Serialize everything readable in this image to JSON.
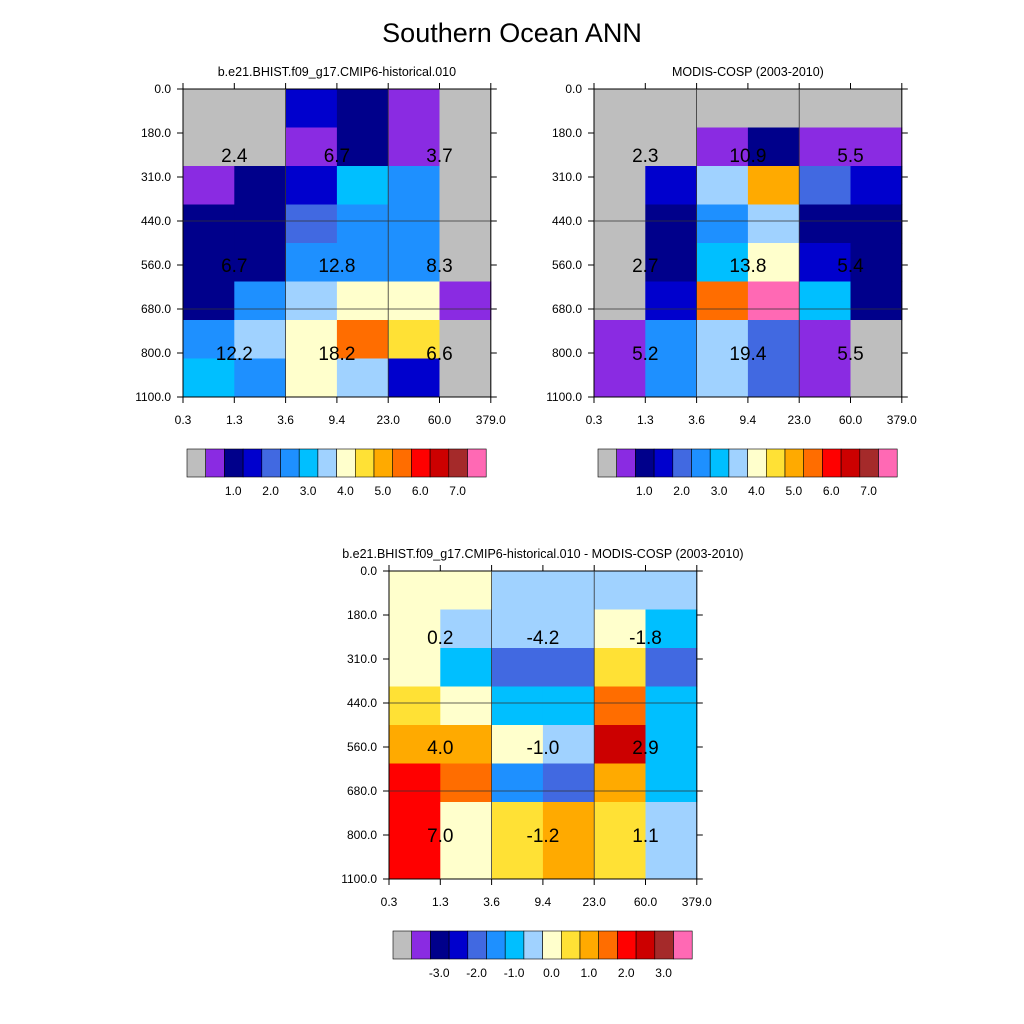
{
  "title": "Southern Ocean ANN",
  "colors": {
    "abs_palette": [
      "#bebebe",
      "#8a2be2",
      "#00008b",
      "#0000cd",
      "#4169e1",
      "#1e90ff",
      "#00bfff",
      "#a0d2ff",
      "#ffffcc",
      "#ffe135",
      "#ffaa00",
      "#ff6d00",
      "#ff0000",
      "#cc0000",
      "#a52a2a",
      "#ff69b4"
    ],
    "diff_palette": [
      "#bebebe",
      "#8a2be2",
      "#00008b",
      "#0000cd",
      "#4169e1",
      "#1e90ff",
      "#00bfff",
      "#a0d2ff",
      "#ffffcc",
      "#ffe135",
      "#ffaa00",
      "#ff6d00",
      "#ff0000",
      "#cc0000",
      "#a52a2a",
      "#ff69b4"
    ]
  },
  "chart_data": [
    {
      "type": "heatmap",
      "title": "b.e21.BHIST.f09_g17.CMIP6-historical.010",
      "xlabels": [
        "0.3",
        "1.3",
        "3.6",
        "9.4",
        "23.0",
        "60.0",
        "379.0"
      ],
      "ylabels": [
        "0.0",
        "180.0",
        "310.0",
        "440.0",
        "560.0",
        "680.0",
        "800.0",
        "1100.0"
      ],
      "cells": [
        [
          0,
          0,
          3,
          2,
          1,
          0
        ],
        [
          0,
          0,
          1,
          2,
          1,
          0
        ],
        [
          1,
          2,
          3,
          6,
          5,
          0
        ],
        [
          2,
          2,
          4,
          5,
          5,
          0
        ],
        [
          2,
          2,
          5,
          5,
          5,
          0
        ],
        [
          2,
          5,
          7,
          8,
          8,
          1
        ],
        [
          5,
          7,
          8,
          11,
          9,
          0
        ],
        [
          6,
          5,
          8,
          7,
          3,
          0
        ]
      ],
      "labels": [
        {
          "text": "2.4",
          "col": 0.5,
          "row": 1.5
        },
        {
          "text": "6.7",
          "col": 2.5,
          "row": 1.5
        },
        {
          "text": "3.7",
          "col": 4.5,
          "row": 1.5
        },
        {
          "text": "6.7",
          "col": 0.5,
          "row": 4.0
        },
        {
          "text": "12.8",
          "col": 2.5,
          "row": 4.0
        },
        {
          "text": "8.3",
          "col": 4.5,
          "row": 4.0
        },
        {
          "text": "12.2",
          "col": 0.5,
          "row": 6.0
        },
        {
          "text": "18.2",
          "col": 2.5,
          "row": 6.0
        },
        {
          "text": "6.6",
          "col": 4.5,
          "row": 6.0
        }
      ],
      "colorbar": {
        "palette": "abs_palette",
        "ticks": [
          "1.0",
          "2.0",
          "3.0",
          "4.0",
          "5.0",
          "6.0",
          "7.0"
        ]
      }
    },
    {
      "type": "heatmap",
      "title": "MODIS-COSP (2003-2010)",
      "xlabels": [
        "0.3",
        "1.3",
        "3.6",
        "9.4",
        "23.0",
        "60.0",
        "379.0"
      ],
      "ylabels": [
        "0.0",
        "180.0",
        "310.0",
        "440.0",
        "560.0",
        "680.0",
        "800.0",
        "1100.0"
      ],
      "cells": [
        [
          0,
          0,
          0,
          0,
          0,
          0
        ],
        [
          0,
          0,
          1,
          2,
          1,
          1
        ],
        [
          0,
          3,
          7,
          10,
          4,
          3
        ],
        [
          0,
          2,
          5,
          7,
          2,
          2
        ],
        [
          0,
          2,
          6,
          8,
          3,
          2
        ],
        [
          0,
          3,
          11,
          15,
          6,
          2
        ],
        [
          1,
          5,
          7,
          4,
          1,
          0
        ],
        [
          1,
          5,
          7,
          4,
          1,
          0
        ]
      ],
      "labels": [
        {
          "text": "2.3",
          "col": 0.5,
          "row": 1.5
        },
        {
          "text": "10.9",
          "col": 2.5,
          "row": 1.5
        },
        {
          "text": "5.5",
          "col": 4.5,
          "row": 1.5
        },
        {
          "text": "2.7",
          "col": 0.5,
          "row": 4.0
        },
        {
          "text": "13.8",
          "col": 2.5,
          "row": 4.0
        },
        {
          "text": "5.4",
          "col": 4.5,
          "row": 4.0
        },
        {
          "text": "5.2",
          "col": 0.5,
          "row": 6.0
        },
        {
          "text": "19.4",
          "col": 2.5,
          "row": 6.0
        },
        {
          "text": "5.5",
          "col": 4.5,
          "row": 6.0
        }
      ],
      "colorbar": {
        "palette": "abs_palette",
        "ticks": [
          "1.0",
          "2.0",
          "3.0",
          "4.0",
          "5.0",
          "6.0",
          "7.0"
        ]
      }
    },
    {
      "type": "heatmap",
      "title": "b.e21.BHIST.f09_g17.CMIP6-historical.010 - MODIS-COSP (2003-2010)",
      "xlabels": [
        "0.3",
        "1.3",
        "3.6",
        "9.4",
        "23.0",
        "60.0",
        "379.0"
      ],
      "ylabels": [
        "0.0",
        "180.0",
        "310.0",
        "440.0",
        "560.0",
        "680.0",
        "800.0",
        "1100.0"
      ],
      "cells": [
        [
          8,
          8,
          7,
          7,
          7,
          7
        ],
        [
          8,
          7,
          7,
          7,
          8,
          6
        ],
        [
          8,
          6,
          4,
          4,
          9,
          4
        ],
        [
          9,
          8,
          6,
          6,
          11,
          6
        ],
        [
          10,
          10,
          8,
          7,
          13,
          6
        ],
        [
          12,
          11,
          5,
          4,
          10,
          6
        ],
        [
          12,
          8,
          9,
          10,
          9,
          7
        ],
        [
          12,
          8,
          9,
          10,
          9,
          7
        ]
      ],
      "labels": [
        {
          "text": "0.2",
          "col": 0.5,
          "row": 1.5
        },
        {
          "text": "-4.2",
          "col": 2.5,
          "row": 1.5
        },
        {
          "text": "-1.8",
          "col": 4.5,
          "row": 1.5
        },
        {
          "text": "4.0",
          "col": 0.5,
          "row": 4.0
        },
        {
          "text": "-1.0",
          "col": 2.5,
          "row": 4.0
        },
        {
          "text": "2.9",
          "col": 4.5,
          "row": 4.0
        },
        {
          "text": "7.0",
          "col": 0.5,
          "row": 6.0
        },
        {
          "text": "-1.2",
          "col": 2.5,
          "row": 6.0
        },
        {
          "text": "1.1",
          "col": 4.5,
          "row": 6.0
        }
      ],
      "colorbar": {
        "palette": "diff_palette",
        "ticks": [
          "-3.0",
          "-2.0",
          "-1.0",
          "0.0",
          "1.0",
          "2.0",
          "3.0"
        ]
      }
    }
  ]
}
